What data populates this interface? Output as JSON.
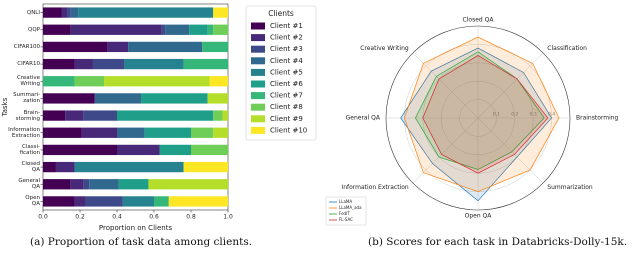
{
  "chart_data": [
    {
      "type": "stacked_barh",
      "categories": [
        "QNLI",
        "QQP",
        "CIFAR100",
        "CIFAR10",
        "Creative\nWriting",
        "Summari-\nzation",
        "Brain-\nstorming",
        "Information\nExtraction",
        "Classi-\nfication",
        "Closed\nQA",
        "General\nQA",
        "Open\nQA"
      ],
      "series": [
        {
          "name": "Client #1",
          "color": "#440154",
          "values": [
            0.1,
            0.15,
            0.35,
            0.17,
            0,
            0.28,
            0.12,
            0.21,
            0.4,
            0.07,
            0.15,
            0.17
          ]
        },
        {
          "name": "Client #2",
          "color": "#482878",
          "values": [
            0.03,
            0.49,
            0.11,
            0.1,
            0,
            0,
            0.1,
            0.19,
            0.23,
            0.1,
            0.07,
            0.06
          ]
        },
        {
          "name": "Client #3",
          "color": "#3e4989",
          "values": [
            0.02,
            0.02,
            0,
            0.17,
            0,
            0,
            0.18,
            0,
            0,
            0,
            0.03,
            0.2
          ]
        },
        {
          "name": "Client #4",
          "color": "#31688e",
          "values": [
            0.04,
            0.13,
            0.4,
            0,
            0,
            0.25,
            0,
            0.15,
            0,
            0,
            0.16,
            0
          ]
        },
        {
          "name": "Client #5",
          "color": "#26828e",
          "values": [
            0.73,
            0,
            0,
            0.32,
            0,
            0,
            0,
            0,
            0,
            0.59,
            0,
            0.17
          ]
        },
        {
          "name": "Client #6",
          "color": "#1f9e89",
          "values": [
            0,
            0.1,
            0,
            0,
            0,
            0.36,
            0.52,
            0.25,
            0.17,
            0,
            0.16,
            0
          ]
        },
        {
          "name": "Client #7",
          "color": "#35b779",
          "values": [
            0,
            0.03,
            0.14,
            0.24,
            0.17,
            0,
            0,
            0,
            0,
            0,
            0,
            0.08
          ]
        },
        {
          "name": "Client #8",
          "color": "#6ece58",
          "values": [
            0,
            0.08,
            0,
            0,
            0.16,
            0,
            0.05,
            0.12,
            0.2,
            0,
            0,
            0
          ]
        },
        {
          "name": "Client #9",
          "color": "#b5de2b",
          "values": [
            0,
            0,
            0,
            0,
            0.57,
            0.11,
            0.03,
            0.08,
            0,
            0,
            0.43,
            0
          ]
        },
        {
          "name": "Client #10",
          "color": "#fde725",
          "values": [
            0.08,
            0,
            0,
            0,
            0.1,
            0,
            0,
            0,
            0,
            0.24,
            0,
            0.32
          ]
        }
      ],
      "xlim": [
        0,
        1
      ],
      "xticks": [
        {
          "value": 0,
          "label": "0.0"
        },
        0.2,
        0.4,
        0.6,
        0.8,
        {
          "value": 1,
          "label": "1.0"
        }
      ],
      "xlabel": "Proportion on Clients",
      "ylabel": "Tasks",
      "legend_title": "Clients",
      "legend": "right"
    },
    {
      "type": "radar",
      "axes": [
        "Closed QA",
        "Classification",
        "Brainstorming",
        "Summarization",
        "Open QA",
        "Information Extraction",
        "General QA",
        "Creative Writing"
      ],
      "series": [
        {
          "name": "LLaMA",
          "color": "#1f77b4",
          "values": [
            0.38,
            0.35,
            0.4,
            0.3,
            0.45,
            0.35,
            0.42,
            0.36
          ]
        },
        {
          "name": "LLaMA_ada",
          "color": "#ff7f0e",
          "values": [
            0.44,
            0.42,
            0.44,
            0.4,
            0.4,
            0.42,
            0.4,
            0.42
          ]
        },
        {
          "name": "FedIT",
          "color": "#2ca02c",
          "values": [
            0.36,
            0.3,
            0.36,
            0.26,
            0.28,
            0.3,
            0.34,
            0.32
          ]
        },
        {
          "name": "FL-SAC",
          "color": "#d62728",
          "values": [
            0.34,
            0.3,
            0.38,
            0.28,
            0.3,
            0.28,
            0.3,
            0.3
          ]
        }
      ],
      "rlim": [
        0,
        0.5
      ],
      "rticks": [
        0.1,
        0.2,
        0.3,
        0.4
      ],
      "legend": "lower left"
    }
  ],
  "captions": [
    "(a) Proportion of task data among clients.",
    "(b) Scores for each task in Databricks-Dolly-15k."
  ]
}
